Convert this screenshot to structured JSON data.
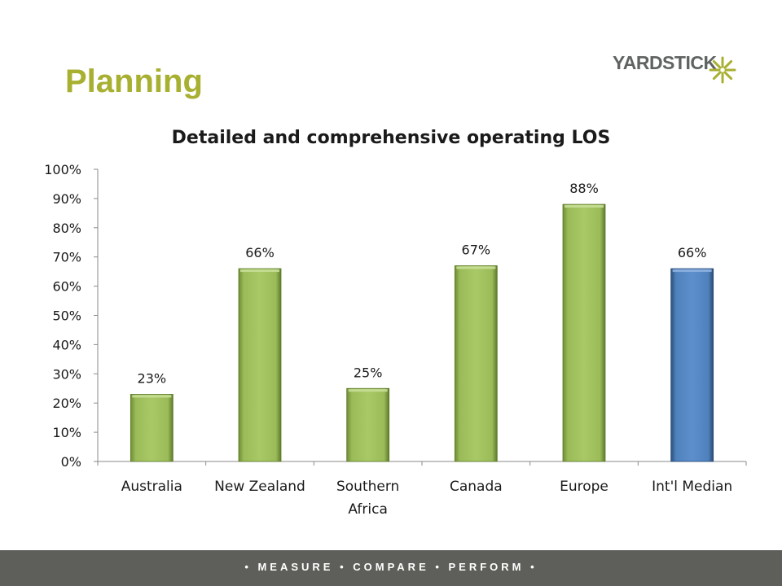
{
  "slide": {
    "title": "Planning",
    "logo_text": "YARDSTICK",
    "footer_text": "• MEASURE • COMPARE • PERFORM •"
  },
  "colors": {
    "title": "#a8b032",
    "bar_primary": "#9bbb59",
    "bar_highlight": "#4f81bd",
    "footer_bg": "#5e5e5a",
    "logo_star": "#a8b032"
  },
  "chart_data": {
    "type": "bar",
    "title": "Detailed and comprehensive operating LOS",
    "xlabel": "",
    "ylabel": "",
    "categories": [
      "Australia",
      "New Zealand",
      "Southern Africa",
      "Canada",
      "Europe",
      "Int'l Median"
    ],
    "category_lines": [
      [
        "Australia"
      ],
      [
        "New Zealand"
      ],
      [
        "Southern",
        "Africa"
      ],
      [
        "Canada"
      ],
      [
        "Europe"
      ],
      [
        "Int'l Median"
      ]
    ],
    "values": [
      23,
      66,
      25,
      67,
      88,
      66
    ],
    "data_labels": [
      "23%",
      "66%",
      "25%",
      "67%",
      "88%",
      "66%"
    ],
    "highlight_index": 5,
    "ylim": [
      0,
      100
    ],
    "yticks": [
      0,
      10,
      20,
      30,
      40,
      50,
      60,
      70,
      80,
      90,
      100
    ],
    "ytick_labels": [
      "0%",
      "10%",
      "20%",
      "30%",
      "40%",
      "50%",
      "60%",
      "70%",
      "80%",
      "90%",
      "100%"
    ],
    "grid": false,
    "legend": "none"
  }
}
